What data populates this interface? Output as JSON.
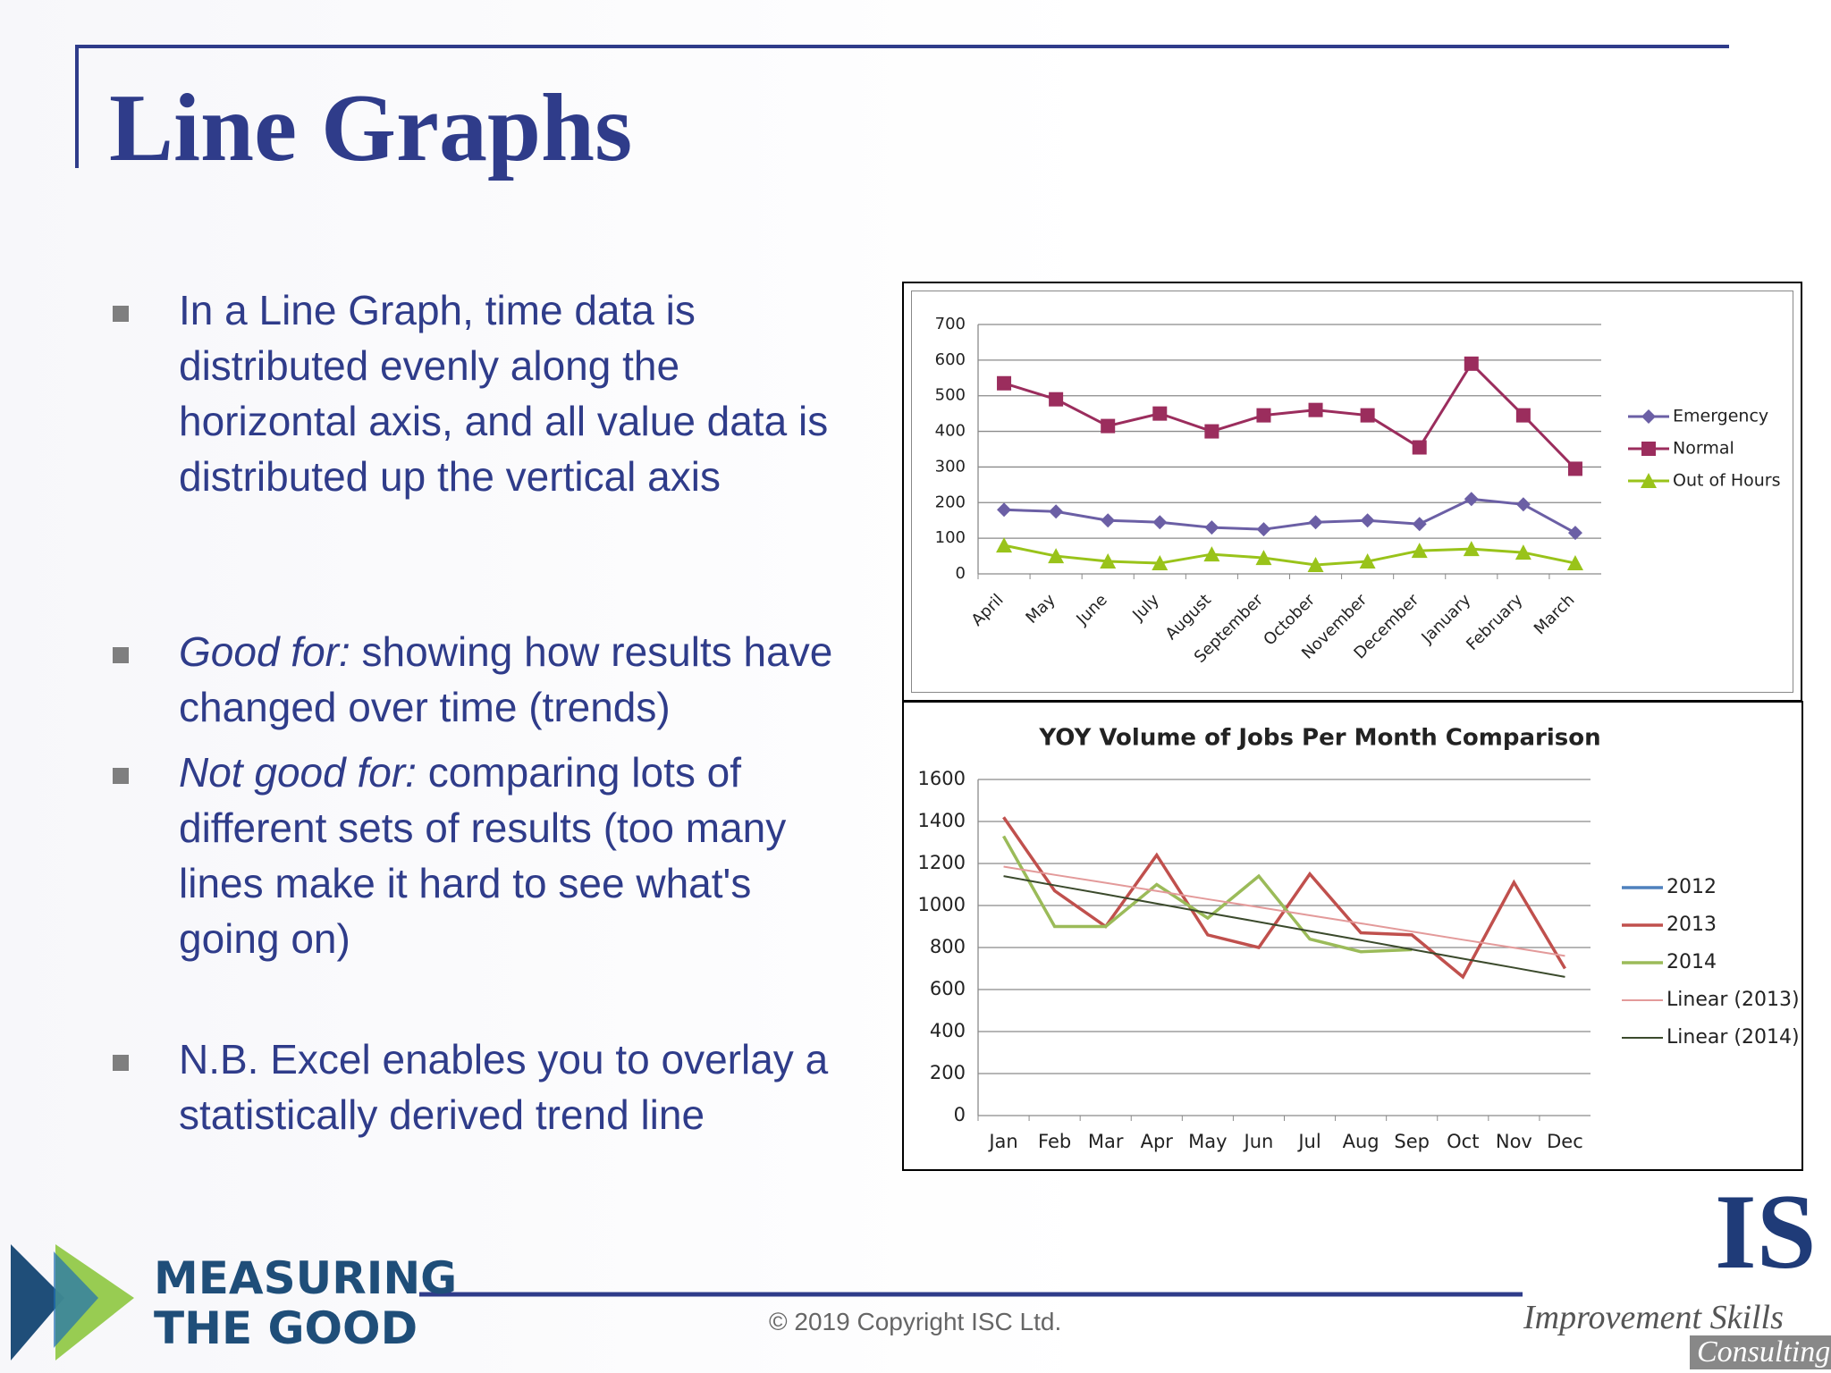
{
  "slide": {
    "title": "Line Graphs",
    "bullets": [
      {
        "text": "In a Line Graph, time data is distributed evenly along the horizontal axis, and all value data is distributed up the vertical axis"
      },
      {
        "lead": "Good for:",
        "text": " showing how results have changed over time (trends)"
      },
      {
        "lead": "Not good for:",
        "text": " comparing lots of different sets of results (too many lines make it hard to see what's going on)"
      },
      {
        "text": "N.B. Excel enables you to overlay a statistically derived trend line"
      }
    ],
    "footer": {
      "logo_line1": "MEASURING",
      "logo_line2": "THE GOOD",
      "copyright": "© 2019 Copyright ISC Ltd.",
      "brand_mark": "IS",
      "brand_name": "Improvement Skills",
      "brand_sub": "Consulting"
    }
  },
  "chart_data": [
    {
      "type": "line",
      "categories": [
        "April",
        "May",
        "June",
        "July",
        "August",
        "September",
        "October",
        "November",
        "December",
        "January",
        "February",
        "March"
      ],
      "ylim": [
        0,
        700
      ],
      "yticks": [
        0,
        100,
        200,
        300,
        400,
        500,
        600,
        700
      ],
      "grid": true,
      "legend": "right",
      "series": [
        {
          "name": "Emergency",
          "color": "#6b5fa5",
          "marker": "diamond",
          "values": [
            180,
            175,
            150,
            145,
            130,
            125,
            145,
            150,
            140,
            210,
            195,
            115
          ]
        },
        {
          "name": "Normal",
          "color": "#9b2d5d",
          "marker": "square",
          "values": [
            535,
            490,
            415,
            450,
            400,
            445,
            460,
            445,
            355,
            590,
            445,
            295
          ]
        },
        {
          "name": "Out of Hours",
          "color": "#99c31a",
          "marker": "triangle",
          "values": [
            80,
            50,
            35,
            30,
            55,
            45,
            25,
            35,
            65,
            70,
            60,
            30
          ]
        }
      ]
    },
    {
      "type": "line",
      "title": "YOY Volume of Jobs Per Month Comparison",
      "categories": [
        "Jan",
        "Feb",
        "Mar",
        "Apr",
        "May",
        "Jun",
        "Jul",
        "Aug",
        "Sep",
        "Oct",
        "Nov",
        "Dec"
      ],
      "ylim": [
        0,
        1600
      ],
      "yticks": [
        0,
        200,
        400,
        600,
        800,
        1000,
        1200,
        1400,
        1600
      ],
      "grid": true,
      "legend": "right",
      "series": [
        {
          "name": "2012",
          "color": "#4f81bd",
          "values": [
            null,
            null,
            null,
            null,
            null,
            null,
            null,
            null,
            null,
            null,
            null,
            null
          ]
        },
        {
          "name": "2013",
          "color": "#c0504d",
          "values": [
            1420,
            1070,
            900,
            1240,
            860,
            800,
            1150,
            870,
            860,
            660,
            1110,
            700
          ]
        },
        {
          "name": "2014",
          "color": "#9bbb59",
          "values": [
            1330,
            900,
            900,
            1100,
            940,
            1140,
            840,
            780,
            790,
            null,
            null,
            null
          ]
        },
        {
          "name": "Linear (2013)",
          "color": "#e39a9a",
          "values": [
            1185,
            1146,
            1108,
            1069,
            1030,
            992,
            953,
            915,
            876,
            837,
            799,
            760
          ]
        },
        {
          "name": "Linear (2014)",
          "color": "#3b4a2c",
          "values": [
            1140,
            1096,
            1053,
            1009,
            965,
            922,
            878,
            835,
            791,
            747,
            704,
            660
          ]
        }
      ]
    }
  ]
}
